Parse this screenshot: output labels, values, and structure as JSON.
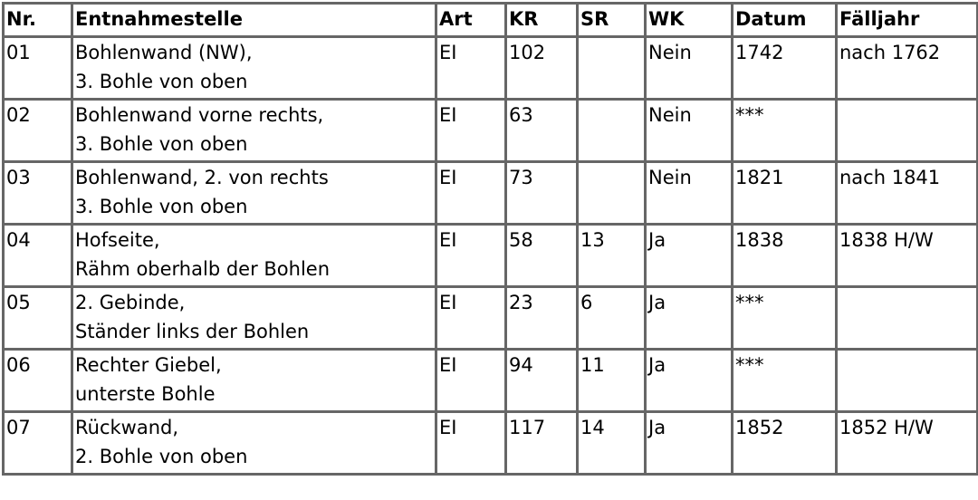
{
  "headers": [
    "Nr.",
    "Entnahmestelle",
    "Art",
    "KR",
    "SR",
    "WK",
    "Datum",
    "Fälljahr"
  ],
  "rows": [
    {
      "nr": "01",
      "stelle": [
        "Bohlenwand (NW),",
        "3. Bohle von oben"
      ],
      "art": "EI",
      "kr": "102",
      "sr": "",
      "wk": "Nein",
      "datum": "1742",
      "faelljahr": "nach 1762"
    },
    {
      "nr": "02",
      "stelle": [
        "Bohlenwand vorne rechts,",
        "3. Bohle von oben"
      ],
      "art": "EI",
      "kr": "63",
      "sr": "",
      "wk": "Nein",
      "datum": "***",
      "faelljahr": ""
    },
    {
      "nr": "03",
      "stelle": [
        "Bohlenwand, 2. von rechts",
        "3. Bohle von oben"
      ],
      "art": "EI",
      "kr": "73",
      "sr": "",
      "wk": "Nein",
      "datum": "1821",
      "faelljahr": "nach 1841"
    },
    {
      "nr": "04",
      "stelle": [
        "Hofseite,",
        "Rähm oberhalb der Bohlen"
      ],
      "art": "EI",
      "kr": "58",
      "sr": "13",
      "wk": "Ja",
      "datum": "1838",
      "faelljahr": "1838 H/W"
    },
    {
      "nr": "05",
      "stelle": [
        "2. Gebinde,",
        "Ständer links der Bohlen"
      ],
      "art": "EI",
      "kr": "23",
      "sr": "6",
      "wk": "Ja",
      "datum": "***",
      "faelljahr": ""
    },
    {
      "nr": "06",
      "stelle": [
        "Rechter Giebel,",
        "unterste Bohle"
      ],
      "art": "EI",
      "kr": "94",
      "sr": "11",
      "wk": "Ja",
      "datum": "***",
      "faelljahr": ""
    },
    {
      "nr": "07",
      "stelle": [
        "Rückwand,",
        "2. Bohle von oben"
      ],
      "art": "EI",
      "kr": "117",
      "sr": "14",
      "wk": "Ja",
      "datum": "1852",
      "faelljahr": "1852 H/W"
    }
  ]
}
